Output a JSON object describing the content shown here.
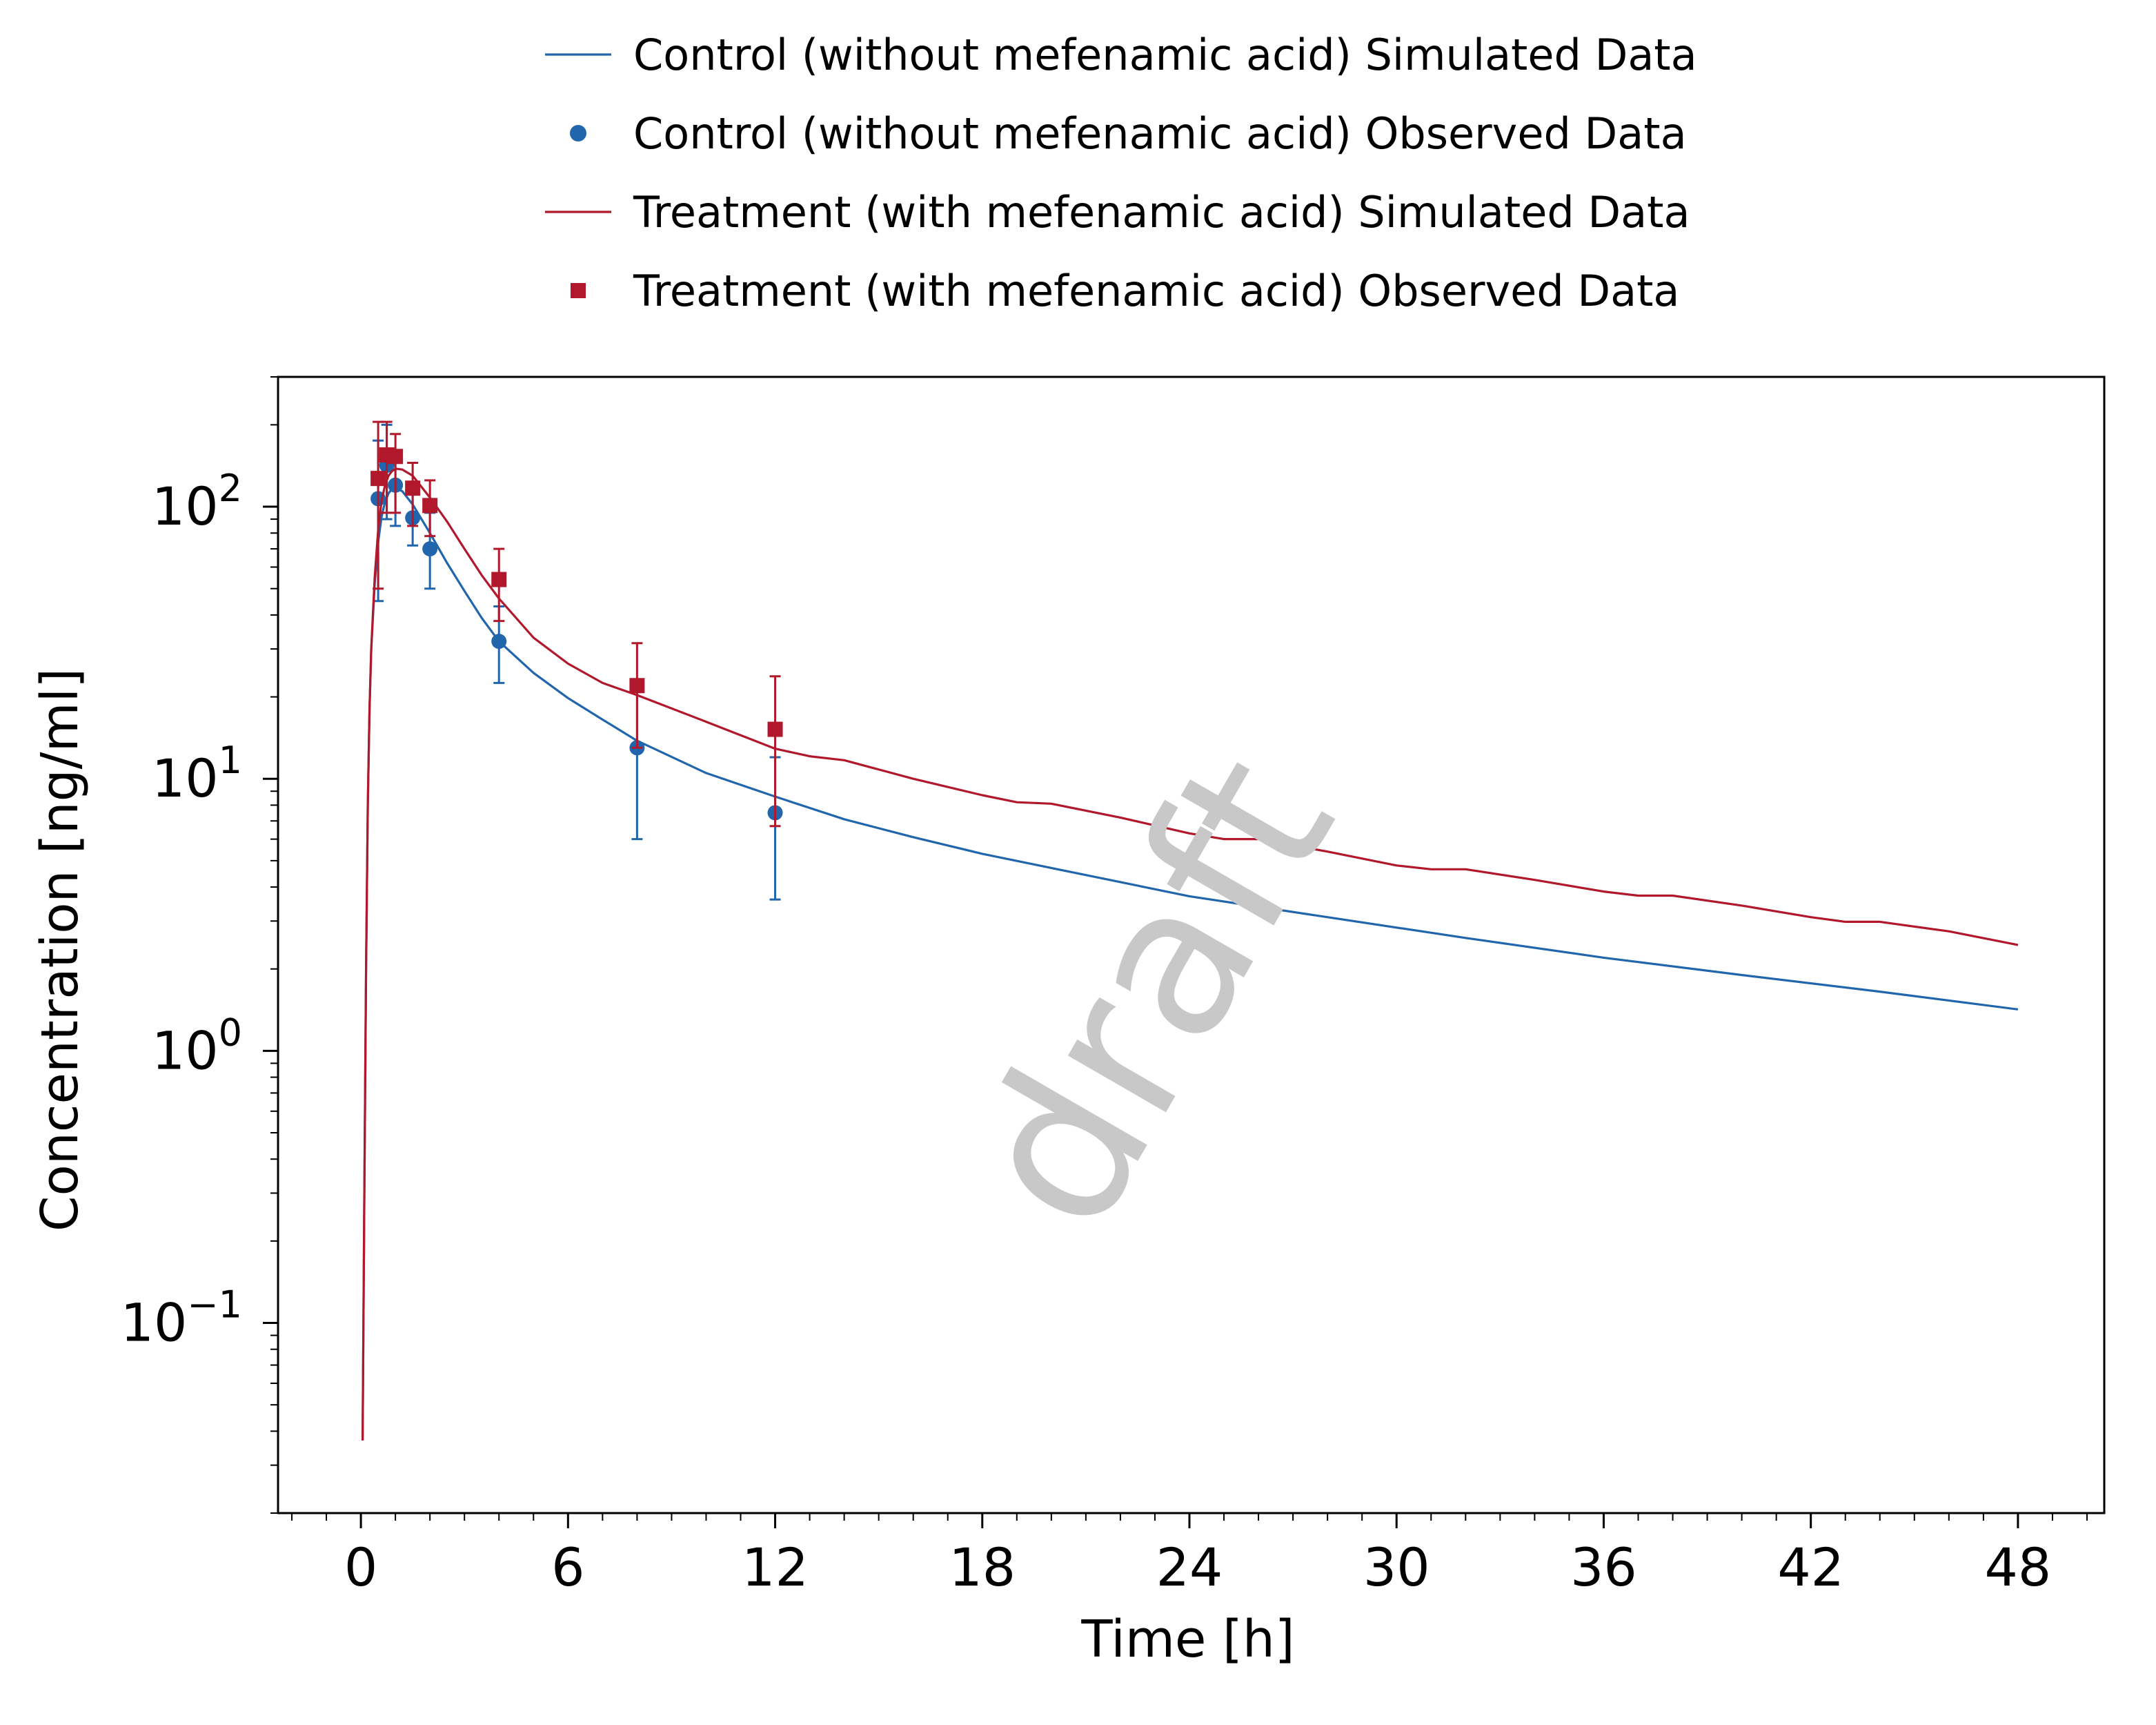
{
  "chart_data": {
    "type": "line",
    "xlabel": "Time [h]",
    "ylabel": "Concentration [ng/ml]",
    "xlim": [
      -2.4,
      50.5
    ],
    "ylim": [
      0.02,
      300
    ],
    "yscale": "log",
    "grid": false,
    "legend_position": "top",
    "watermark": "draft",
    "x_ticks": [
      0,
      6,
      12,
      18,
      24,
      30,
      36,
      42,
      48
    ],
    "x_tick_labels": [
      "0",
      "6",
      "12",
      "18",
      "24",
      "30",
      "36",
      "42",
      "48"
    ],
    "y_ticks": [
      {
        "value": 100,
        "base": "10",
        "exp": "2"
      },
      {
        "value": 10,
        "base": "10",
        "exp": "1"
      },
      {
        "value": 1,
        "base": "10",
        "exp": "0"
      },
      {
        "value": 0.1,
        "base": "10",
        "exp": "−1"
      }
    ],
    "series": [
      {
        "name": "Control (without mefenamic acid) Simulated Data",
        "kind": "line",
        "color": "#2166ac",
        "points": [
          [
            0.05,
            0.037
          ],
          [
            0.1,
            0.3
          ],
          [
            0.15,
            2.0
          ],
          [
            0.2,
            8.0
          ],
          [
            0.25,
            18
          ],
          [
            0.3,
            30
          ],
          [
            0.4,
            52
          ],
          [
            0.5,
            74
          ],
          [
            0.6,
            92
          ],
          [
            0.7,
            104
          ],
          [
            0.8,
            112
          ],
          [
            0.9,
            116
          ],
          [
            1.0,
            117
          ],
          [
            1.2,
            114
          ],
          [
            1.5,
            102
          ],
          [
            2.0,
            80
          ],
          [
            2.5,
            62
          ],
          [
            3.0,
            49
          ],
          [
            3.5,
            39
          ],
          [
            4.0,
            32
          ],
          [
            5.0,
            24.5
          ],
          [
            6.0,
            19.8
          ],
          [
            7.0,
            16.5
          ],
          [
            8.0,
            13.8
          ],
          [
            10.0,
            10.5
          ],
          [
            12.0,
            8.6
          ],
          [
            14.0,
            7.1
          ],
          [
            16.0,
            6.1
          ],
          [
            18.0,
            5.3
          ],
          [
            20.0,
            4.7
          ],
          [
            24.0,
            3.7
          ],
          [
            28.0,
            3.1
          ],
          [
            32.0,
            2.6
          ],
          [
            36.0,
            2.2
          ],
          [
            40.0,
            1.9
          ],
          [
            44.0,
            1.65
          ],
          [
            48.0,
            1.42
          ]
        ]
      },
      {
        "name": "Control (without mefenamic acid) Observed Data",
        "kind": "scatter",
        "marker": "circle",
        "color": "#2166ac",
        "points": [
          {
            "x": 0.5,
            "y": 107,
            "lo": 45,
            "hi": 175
          },
          {
            "x": 0.75,
            "y": 142,
            "lo": 90,
            "hi": 200
          },
          {
            "x": 1.0,
            "y": 120,
            "lo": 85,
            "hi": 160
          },
          {
            "x": 1.5,
            "y": 91,
            "lo": 72,
            "hi": 112
          },
          {
            "x": 2.0,
            "y": 70,
            "lo": 50,
            "hi": 95
          },
          {
            "x": 4.0,
            "y": 32,
            "lo": 22.5,
            "hi": 43
          },
          {
            "x": 8.0,
            "y": 13,
            "lo": 6,
            "hi": 23
          },
          {
            "x": 12.0,
            "y": 7.5,
            "lo": 3.6,
            "hi": 12
          }
        ]
      },
      {
        "name": "Treatment (with mefenamic acid) Simulated Data",
        "kind": "line",
        "color": "#b2182b",
        "points": [
          [
            0.05,
            0.037
          ],
          [
            0.1,
            0.3
          ],
          [
            0.15,
            2.0
          ],
          [
            0.2,
            8.0
          ],
          [
            0.25,
            18
          ],
          [
            0.3,
            30
          ],
          [
            0.4,
            55
          ],
          [
            0.5,
            82
          ],
          [
            0.6,
            105
          ],
          [
            0.7,
            120
          ],
          [
            0.8,
            130
          ],
          [
            0.9,
            135
          ],
          [
            1.0,
            138
          ],
          [
            1.2,
            137
          ],
          [
            1.5,
            130
          ],
          [
            2.0,
            108
          ],
          [
            2.5,
            88
          ],
          [
            3.0,
            70
          ],
          [
            3.5,
            56
          ],
          [
            4.0,
            46
          ],
          [
            5.0,
            33
          ],
          [
            6.0,
            26.5
          ],
          [
            7.0,
            22.5
          ],
          [
            8.0,
            20.3
          ],
          [
            10.0,
            16.2
          ],
          [
            12.0,
            12.9
          ],
          [
            13.0,
            12.1
          ],
          [
            14.0,
            11.7
          ],
          [
            16.0,
            10.0
          ],
          [
            18.0,
            8.7
          ],
          [
            19.0,
            8.2
          ],
          [
            20.0,
            8.1
          ],
          [
            22.0,
            7.2
          ],
          [
            24.0,
            6.3
          ],
          [
            25.0,
            6.0
          ],
          [
            26.0,
            6.0
          ],
          [
            28.0,
            5.4
          ],
          [
            30.0,
            4.8
          ],
          [
            31.0,
            4.65
          ],
          [
            32.0,
            4.65
          ],
          [
            34.0,
            4.25
          ],
          [
            36.0,
            3.85
          ],
          [
            37.0,
            3.72
          ],
          [
            38.0,
            3.72
          ],
          [
            40.0,
            3.42
          ],
          [
            42.0,
            3.1
          ],
          [
            43.0,
            2.98
          ],
          [
            44.0,
            2.98
          ],
          [
            46.0,
            2.75
          ],
          [
            48.0,
            2.45
          ]
        ]
      },
      {
        "name": "Treatment (with mefenamic acid) Observed Data",
        "kind": "scatter",
        "marker": "square",
        "color": "#b2182b",
        "points": [
          {
            "x": 0.5,
            "y": 127,
            "lo": 50,
            "hi": 205
          },
          {
            "x": 0.75,
            "y": 155,
            "lo": 95,
            "hi": 205
          },
          {
            "x": 1.0,
            "y": 153,
            "lo": 95,
            "hi": 185
          },
          {
            "x": 1.5,
            "y": 117,
            "lo": 85,
            "hi": 145
          },
          {
            "x": 2.0,
            "y": 101,
            "lo": 78,
            "hi": 125
          },
          {
            "x": 4.0,
            "y": 54,
            "lo": 38,
            "hi": 70
          },
          {
            "x": 8.0,
            "y": 22,
            "lo": 13,
            "hi": 31.5
          },
          {
            "x": 12.0,
            "y": 15.2,
            "lo": 6.7,
            "hi": 23.8
          }
        ]
      }
    ]
  }
}
